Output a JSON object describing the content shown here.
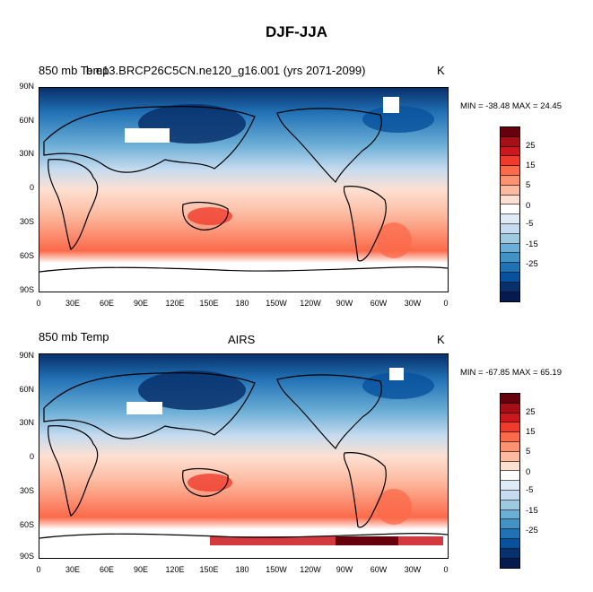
{
  "title": "DJF-JJA",
  "panels": [
    {
      "left_label": "850 mb Temp",
      "center_label": "b.e13.BRCP26C5CN.ne120_g16.001 (yrs 2071-2099)",
      "units": "K",
      "min_max": "MIN = -38.48 MAX =  24.45"
    },
    {
      "left_label": "850 mb Temp",
      "center_label": "AIRS",
      "units": "K",
      "min_max": "MIN = -67.85 MAX =  65.19"
    }
  ],
  "lat_labels": [
    "90N",
    "60N",
    "30N",
    "0",
    "30S",
    "60S",
    "90S"
  ],
  "lon_labels": [
    "0",
    "30E",
    "60E",
    "90E",
    "120E",
    "150E",
    "180",
    "150W",
    "120W",
    "90W",
    "60W",
    "30W",
    "0"
  ],
  "colorbar": {
    "labels": [
      "25",
      "15",
      "5",
      "0",
      "-5",
      "-15",
      "-25"
    ],
    "colors": [
      "#67000d",
      "#a50f15",
      "#cb181d",
      "#ef3b2c",
      "#fb6a4a",
      "#fc9272",
      "#fcbba1",
      "#fee0d2",
      "#ffffff",
      "#deebf7",
      "#c6dbef",
      "#9ecae1",
      "#6baed6",
      "#4292c6",
      "#2171b5",
      "#08519c",
      "#08306b",
      "#061a4f"
    ]
  }
}
